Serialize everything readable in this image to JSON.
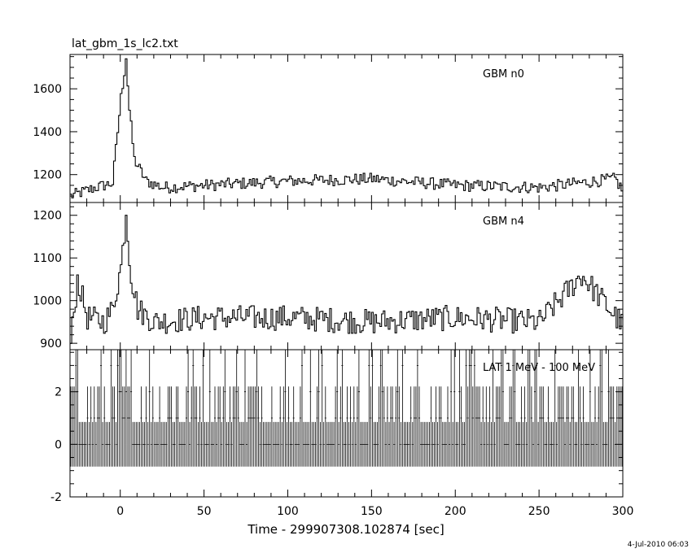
{
  "file_title": "lat_gbm_1s_lc2.txt",
  "footer_date": "4-Jul-2010 06:03",
  "chart_data": [
    {
      "type": "line",
      "name": "GBM n0",
      "xlim": [
        -30,
        300
      ],
      "ylim": [
        1070,
        1760
      ],
      "yticks": [
        1200,
        1400,
        1600
      ],
      "xticks": [
        0,
        50,
        100,
        150,
        200,
        250,
        300
      ],
      "annotation": "GBM n0",
      "baseline": 1130,
      "noise": 28,
      "peak": {
        "x": 3,
        "y": 1740
      },
      "anchors": [
        [
          -30,
          1100
        ],
        [
          -15,
          1140
        ],
        [
          -5,
          1160
        ],
        [
          0,
          1560
        ],
        [
          3,
          1740
        ],
        [
          5,
          1500
        ],
        [
          8,
          1270
        ],
        [
          15,
          1170
        ],
        [
          25,
          1140
        ],
        [
          50,
          1150
        ],
        [
          100,
          1170
        ],
        [
          150,
          1180
        ],
        [
          200,
          1150
        ],
        [
          250,
          1140
        ],
        [
          295,
          1180
        ],
        [
          300,
          1120
        ]
      ]
    },
    {
      "type": "line",
      "name": "GBM n4",
      "xlim": [
        -30,
        300
      ],
      "ylim": [
        885,
        1230
      ],
      "yticks": [
        900,
        1000,
        1100,
        1200
      ],
      "xticks": [
        0,
        50,
        100,
        150,
        200,
        250,
        300
      ],
      "annotation": "GBM n4",
      "baseline": 950,
      "noise": 30,
      "peak": {
        "x": 3,
        "y": 1200
      },
      "anchors": [
        [
          -30,
          900
        ],
        [
          -26,
          1050
        ],
        [
          -20,
          960
        ],
        [
          -10,
          950
        ],
        [
          -5,
          980
        ],
        [
          0,
          1080
        ],
        [
          3,
          1200
        ],
        [
          6,
          1060
        ],
        [
          10,
          980
        ],
        [
          20,
          950
        ],
        [
          50,
          960
        ],
        [
          100,
          960
        ],
        [
          150,
          950
        ],
        [
          200,
          960
        ],
        [
          250,
          950
        ],
        [
          275,
          1060
        ],
        [
          300,
          940
        ]
      ]
    },
    {
      "type": "bar",
      "name": "LAT 1 MeV - 100 MeV",
      "xlim": [
        -30,
        300
      ],
      "ylim": [
        -2,
        3.6
      ],
      "yticks": [
        -2,
        0,
        2
      ],
      "xticks": [
        0,
        50,
        100,
        150,
        200,
        250,
        300
      ],
      "xlabel": "Time - 299907308.102874 [sec]",
      "annotation": "LAT 1 MeV - 100 MeV",
      "count_values": [
        0,
        1,
        2,
        3
      ],
      "error_bar_lower": -0.85,
      "error_bar_upper_for_zero": 0.85
    }
  ]
}
